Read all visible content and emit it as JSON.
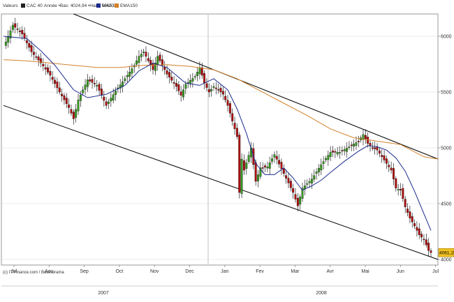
{
  "legend": {
    "valeurs": "Valeurs",
    "instrument": "CAC 40",
    "range_text": "Année •Bas: 4024,94 •Haut: 5665,94",
    "ma_label": "MA20",
    "ema_label": "EMA150"
  },
  "footer": {
    "copyright": "(c) IT-Finance.com / Boursorama"
  },
  "colors": {
    "up": "#3a9a22",
    "down": "#b01010",
    "ma": "#1a2a8c",
    "ema": "#d4822a",
    "channel": "#000000",
    "grid": "#dddddd",
    "last_price_bg": "#f0c020"
  },
  "chart_data": {
    "type": "candlestick",
    "ylim": [
      3950,
      6200
    ],
    "y_ticks": [
      {
        "value": 4000,
        "label": "4000"
      },
      {
        "value": 4500,
        "label": "4500"
      },
      {
        "value": 5000,
        "label": "5000"
      },
      {
        "value": 5500,
        "label": "5500"
      },
      {
        "value": 6000,
        "label": "6000"
      }
    ],
    "x_ticks": [
      "Jul",
      "Aou",
      "Sep",
      "Oct",
      "Nov",
      "Dec",
      "Jan",
      "Fev",
      "Mar",
      "Avr",
      "Mai",
      "Jun",
      "Jul"
    ],
    "years": [
      {
        "label": "2007"
      },
      {
        "label": "2008"
      }
    ],
    "last_price": {
      "value": 4061.15,
      "label": "4061,15"
    },
    "close_points": [
      [
        0,
        5900
      ],
      [
        4,
        6100
      ],
      [
        8,
        6020
      ],
      [
        12,
        5860
      ],
      [
        16,
        5760
      ],
      [
        20,
        5650
      ],
      [
        24,
        5500
      ],
      [
        28,
        5360
      ],
      [
        30,
        5260
      ],
      [
        32,
        5430
      ],
      [
        36,
        5610
      ],
      [
        40,
        5560
      ],
      [
        44,
        5380
      ],
      [
        48,
        5510
      ],
      [
        52,
        5620
      ],
      [
        56,
        5740
      ],
      [
        58,
        5820
      ],
      [
        60,
        5860
      ],
      [
        64,
        5700
      ],
      [
        66,
        5820
      ],
      [
        70,
        5660
      ],
      [
        74,
        5550
      ],
      [
        76,
        5470
      ],
      [
        78,
        5570
      ],
      [
        82,
        5640
      ],
      [
        84,
        5720
      ],
      [
        86,
        5580
      ],
      [
        88,
        5500
      ],
      [
        90,
        5550
      ],
      [
        92,
        5520
      ],
      [
        94,
        5480
      ],
      [
        96,
        5380
      ],
      [
        100,
        5100
      ],
      [
        101,
        4600
      ],
      [
        102,
        4900
      ],
      [
        103,
        4800
      ],
      [
        106,
        5000
      ],
      [
        108,
        4700
      ],
      [
        110,
        4820
      ],
      [
        113,
        4830
      ],
      [
        116,
        4940
      ],
      [
        120,
        4770
      ],
      [
        124,
        4600
      ],
      [
        126,
        4480
      ],
      [
        128,
        4640
      ],
      [
        132,
        4720
      ],
      [
        136,
        4850
      ],
      [
        140,
        4960
      ],
      [
        144,
        4960
      ],
      [
        148,
        5010
      ],
      [
        152,
        5060
      ],
      [
        154,
        5120
      ],
      [
        156,
        5040
      ],
      [
        158,
        5000
      ],
      [
        160,
        4980
      ],
      [
        162,
        4920
      ],
      [
        164,
        4860
      ],
      [
        166,
        4800
      ],
      [
        168,
        4640
      ],
      [
        170,
        4620
      ],
      [
        172,
        4470
      ],
      [
        174,
        4370
      ],
      [
        176,
        4300
      ],
      [
        178,
        4220
      ],
      [
        180,
        4180
      ],
      [
        182,
        4080
      ],
      [
        183,
        4061.15
      ]
    ],
    "ma20_points": [
      [
        0,
        6000
      ],
      [
        10,
        5980
      ],
      [
        16,
        5870
      ],
      [
        22,
        5740
      ],
      [
        30,
        5520
      ],
      [
        36,
        5450
      ],
      [
        44,
        5480
      ],
      [
        52,
        5560
      ],
      [
        58,
        5690
      ],
      [
        64,
        5760
      ],
      [
        70,
        5720
      ],
      [
        78,
        5580
      ],
      [
        84,
        5560
      ],
      [
        90,
        5620
      ],
      [
        96,
        5520
      ],
      [
        100,
        5350
      ],
      [
        104,
        5130
      ],
      [
        108,
        4860
      ],
      [
        112,
        4760
      ],
      [
        116,
        4760
      ],
      [
        120,
        4820
      ],
      [
        124,
        4730
      ],
      [
        128,
        4620
      ],
      [
        132,
        4660
      ],
      [
        136,
        4710
      ],
      [
        140,
        4780
      ],
      [
        146,
        4880
      ],
      [
        152,
        4970
      ],
      [
        156,
        5020
      ],
      [
        160,
        5010
      ],
      [
        164,
        4980
      ],
      [
        168,
        4910
      ],
      [
        172,
        4790
      ],
      [
        176,
        4610
      ],
      [
        180,
        4410
      ],
      [
        183,
        4260
      ]
    ],
    "ema150_points": [
      [
        0,
        5790
      ],
      [
        10,
        5780
      ],
      [
        20,
        5760
      ],
      [
        30,
        5740
      ],
      [
        40,
        5720
      ],
      [
        50,
        5720
      ],
      [
        60,
        5740
      ],
      [
        70,
        5745
      ],
      [
        80,
        5730
      ],
      [
        90,
        5700
      ],
      [
        100,
        5620
      ],
      [
        110,
        5510
      ],
      [
        120,
        5400
      ],
      [
        130,
        5290
      ],
      [
        140,
        5170
      ],
      [
        150,
        5090
      ],
      [
        160,
        5060
      ],
      [
        170,
        5030
      ],
      [
        180,
        4920
      ],
      [
        186,
        4900
      ]
    ],
    "channel_lines": [
      {
        "from": [
          30,
          6200
        ],
        "to": [
          186,
          4900
        ]
      },
      {
        "from": [
          0,
          5380
        ],
        "to": [
          186,
          4000
        ]
      }
    ]
  }
}
